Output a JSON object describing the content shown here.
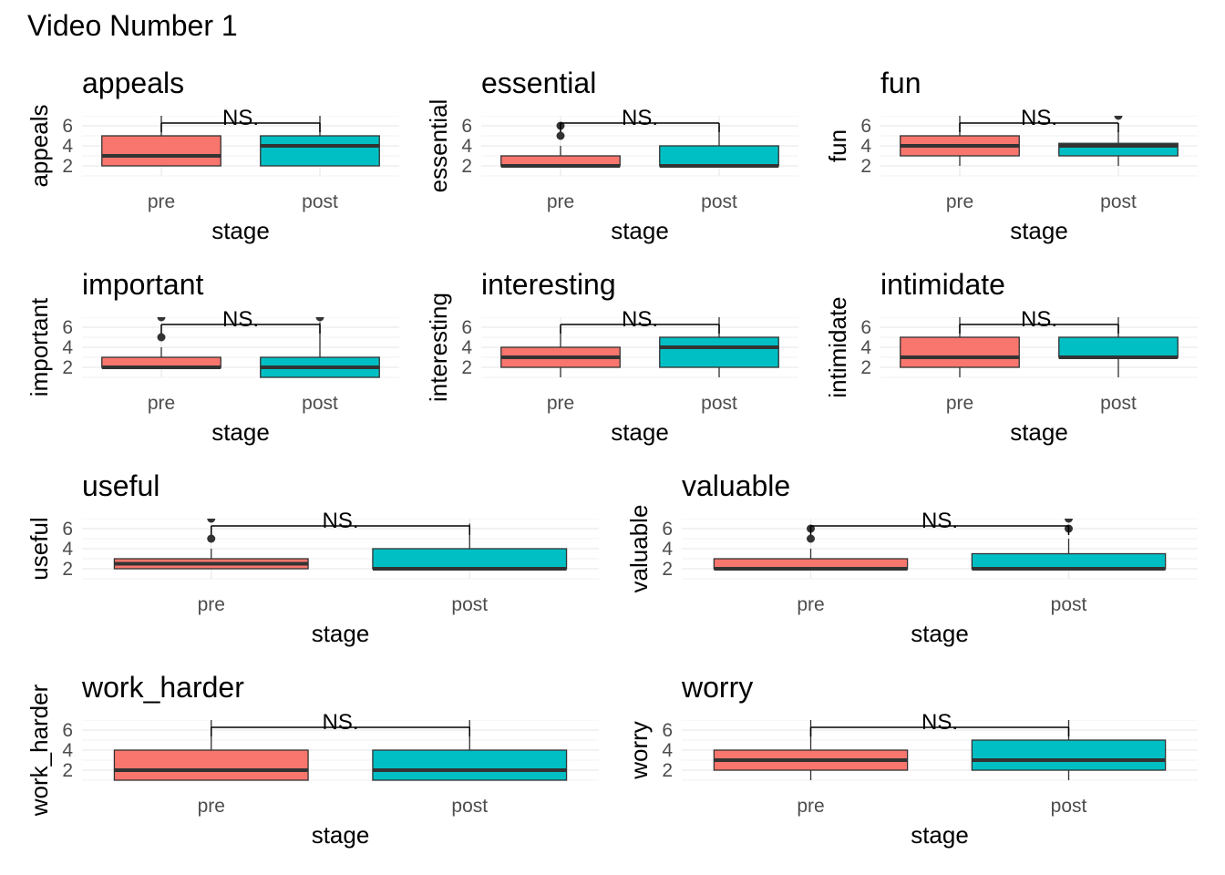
{
  "title": "Video Number 1",
  "colors": {
    "pre": "#F8766D",
    "post": "#00BFC4",
    "median": "#333333",
    "grid": "#EBEBEB",
    "outline": "#333333"
  },
  "chart_data": [
    {
      "type": "boxplot",
      "title": "appeals",
      "xlabel": "stage",
      "ylabel": "appeals",
      "categories": [
        "pre",
        "post"
      ],
      "yticks": [
        2,
        4,
        6
      ],
      "ylim": [
        1,
        7
      ],
      "annotation": "NS.",
      "boxes": [
        {
          "q1": 2,
          "median": 3,
          "q3": 5,
          "lower": 2,
          "upper": 7,
          "outliers": []
        },
        {
          "q1": 2,
          "median": 4,
          "q3": 5,
          "lower": 2,
          "upper": 7,
          "outliers": []
        }
      ]
    },
    {
      "type": "boxplot",
      "title": "essential",
      "xlabel": "stage",
      "ylabel": "essential",
      "categories": [
        "pre",
        "post"
      ],
      "yticks": [
        2,
        4,
        6
      ],
      "ylim": [
        1,
        7
      ],
      "annotation": "NS.",
      "boxes": [
        {
          "q1": 2,
          "median": 2,
          "q3": 3,
          "lower": 2,
          "upper": 4,
          "outliers": [
            5,
            6
          ]
        },
        {
          "q1": 2,
          "median": 2,
          "q3": 4,
          "lower": 2,
          "upper": 6,
          "outliers": []
        }
      ]
    },
    {
      "type": "boxplot",
      "title": "fun",
      "xlabel": "stage",
      "ylabel": "fun",
      "categories": [
        "pre",
        "post"
      ],
      "yticks": [
        2,
        4,
        6
      ],
      "ylim": [
        1,
        7
      ],
      "annotation": "NS.",
      "boxes": [
        {
          "q1": 3,
          "median": 4,
          "q3": 5,
          "lower": 2,
          "upper": 7,
          "outliers": []
        },
        {
          "q1": 3,
          "median": 4,
          "q3": 4.25,
          "lower": 2,
          "upper": 5.5,
          "outliers": [
            7
          ]
        }
      ]
    },
    {
      "type": "boxplot",
      "title": "important",
      "xlabel": "stage",
      "ylabel": "important",
      "categories": [
        "pre",
        "post"
      ],
      "yticks": [
        2,
        4,
        6
      ],
      "ylim": [
        1,
        7
      ],
      "annotation": "NS.",
      "boxes": [
        {
          "q1": 2,
          "median": 2,
          "q3": 3,
          "lower": 2,
          "upper": 4,
          "outliers": [
            5,
            7
          ]
        },
        {
          "q1": 1,
          "median": 2,
          "q3": 3,
          "lower": 1,
          "upper": 6.5,
          "outliers": [
            7
          ]
        }
      ]
    },
    {
      "type": "boxplot",
      "title": "interesting",
      "xlabel": "stage",
      "ylabel": "interesting",
      "categories": [
        "pre",
        "post"
      ],
      "yticks": [
        2,
        4,
        6
      ],
      "ylim": [
        1,
        7
      ],
      "annotation": "NS.",
      "boxes": [
        {
          "q1": 2,
          "median": 3,
          "q3": 4,
          "lower": 1,
          "upper": 6,
          "outliers": []
        },
        {
          "q1": 2,
          "median": 4,
          "q3": 5,
          "lower": 1,
          "upper": 7,
          "outliers": []
        }
      ]
    },
    {
      "type": "boxplot",
      "title": "intimidate",
      "xlabel": "stage",
      "ylabel": "intimidate",
      "categories": [
        "pre",
        "post"
      ],
      "yticks": [
        2,
        4,
        6
      ],
      "ylim": [
        1,
        7
      ],
      "annotation": "NS.",
      "boxes": [
        {
          "q1": 2,
          "median": 3,
          "q3": 5,
          "lower": 1,
          "upper": 7,
          "outliers": []
        },
        {
          "q1": 3,
          "median": 3,
          "q3": 5,
          "lower": 1,
          "upper": 7,
          "outliers": []
        }
      ]
    },
    {
      "type": "boxplot",
      "title": "useful",
      "xlabel": "stage",
      "ylabel": "useful",
      "categories": [
        "pre",
        "post"
      ],
      "yticks": [
        2,
        4,
        6
      ],
      "ylim": [
        1,
        7
      ],
      "annotation": "NS.",
      "boxes": [
        {
          "q1": 2,
          "median": 2.5,
          "q3": 3,
          "lower": 2,
          "upper": 4,
          "outliers": [
            5,
            7
          ]
        },
        {
          "q1": 2,
          "median": 2,
          "q3": 4,
          "lower": 2,
          "upper": 6.5,
          "outliers": []
        }
      ]
    },
    {
      "type": "boxplot",
      "title": "valuable",
      "xlabel": "stage",
      "ylabel": "valuable",
      "categories": [
        "pre",
        "post"
      ],
      "yticks": [
        2,
        4,
        6
      ],
      "ylim": [
        1,
        7
      ],
      "annotation": "NS.",
      "boxes": [
        {
          "q1": 2,
          "median": 2,
          "q3": 3,
          "lower": 2,
          "upper": 4,
          "outliers": [
            5,
            6
          ]
        },
        {
          "q1": 2,
          "median": 2,
          "q3": 3.5,
          "lower": 2,
          "upper": 5,
          "outliers": [
            6,
            7
          ]
        }
      ]
    },
    {
      "type": "boxplot",
      "title": "work_harder",
      "xlabel": "stage",
      "ylabel": "work_harder",
      "categories": [
        "pre",
        "post"
      ],
      "yticks": [
        2,
        4,
        6
      ],
      "ylim": [
        1,
        7
      ],
      "annotation": "NS.",
      "boxes": [
        {
          "q1": 1,
          "median": 2,
          "q3": 4,
          "lower": 1,
          "upper": 7,
          "outliers": []
        },
        {
          "q1": 1,
          "median": 2,
          "q3": 4,
          "lower": 1,
          "upper": 7,
          "outliers": []
        }
      ]
    },
    {
      "type": "boxplot",
      "title": "worry",
      "xlabel": "stage",
      "ylabel": "worry",
      "categories": [
        "pre",
        "post"
      ],
      "yticks": [
        2,
        4,
        6
      ],
      "ylim": [
        1,
        7
      ],
      "annotation": "NS.",
      "boxes": [
        {
          "q1": 2,
          "median": 3,
          "q3": 4,
          "lower": 1,
          "upper": 7,
          "outliers": []
        },
        {
          "q1": 2,
          "median": 3,
          "q3": 5,
          "lower": 1,
          "upper": 7,
          "outliers": []
        }
      ]
    }
  ]
}
